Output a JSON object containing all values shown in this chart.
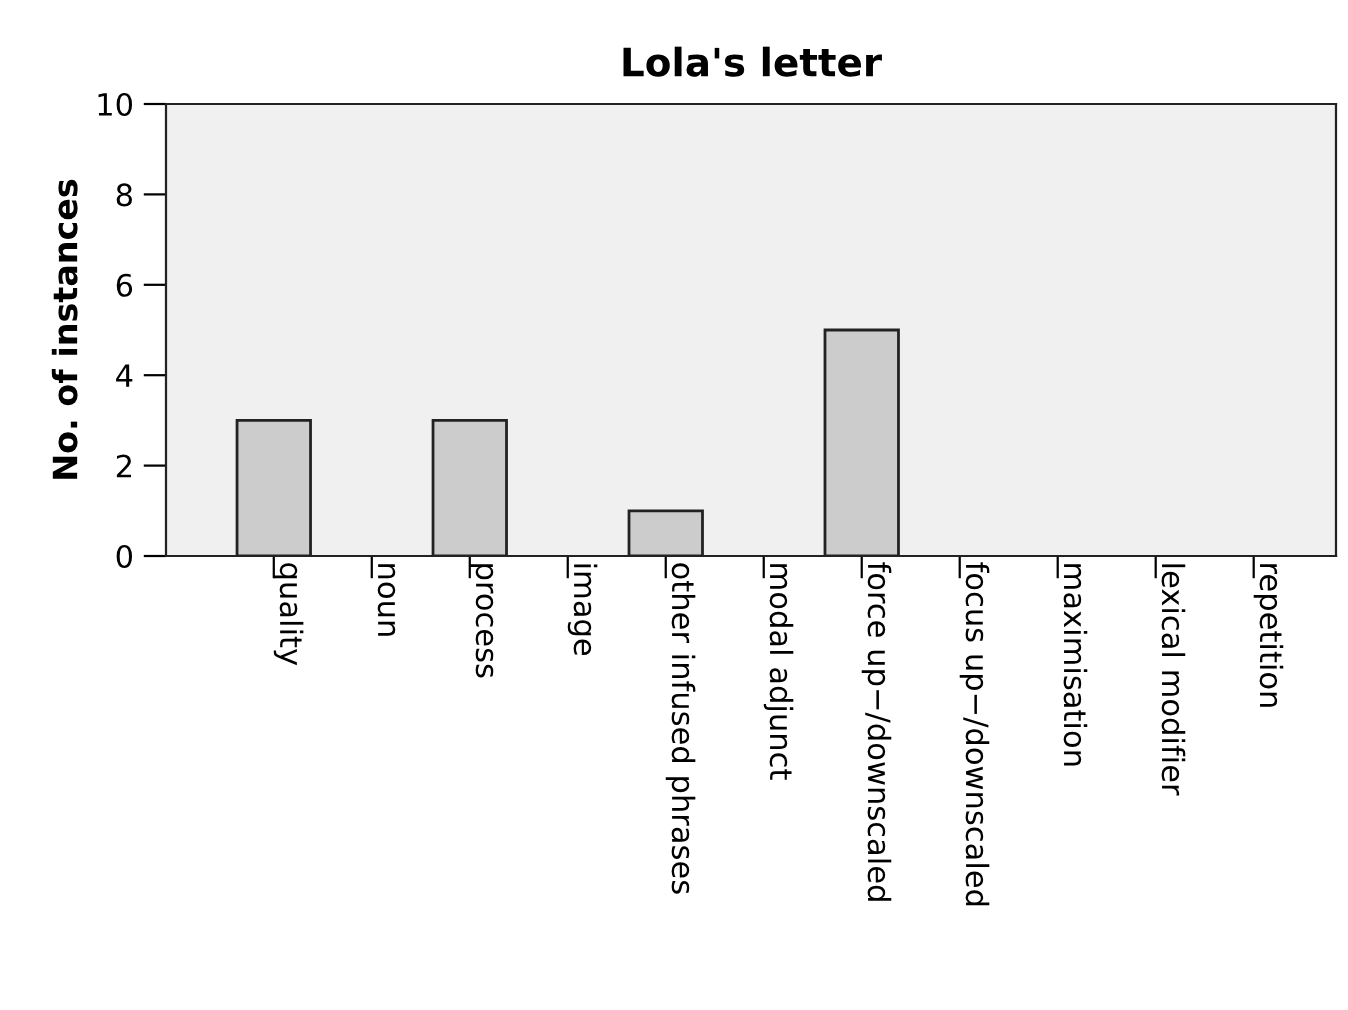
{
  "chart_data": {
    "type": "bar",
    "title": "Lola's letter",
    "ylabel": "No. of instances",
    "categories": [
      "quality",
      "noun",
      "process",
      "image",
      "other infused phrases",
      "modal adjunct",
      "force up−/downscaled",
      "focus up−/downscaled",
      "maximisation",
      "lexical modifier",
      "repetition"
    ],
    "values": [
      3,
      0,
      3,
      0,
      1,
      0,
      5,
      0,
      0,
      0,
      0
    ],
    "color": "#cccccc",
    "ylim": [
      0,
      10
    ],
    "yticks": [
      0,
      2,
      4,
      6,
      8,
      10
    ],
    "grid": false
  }
}
